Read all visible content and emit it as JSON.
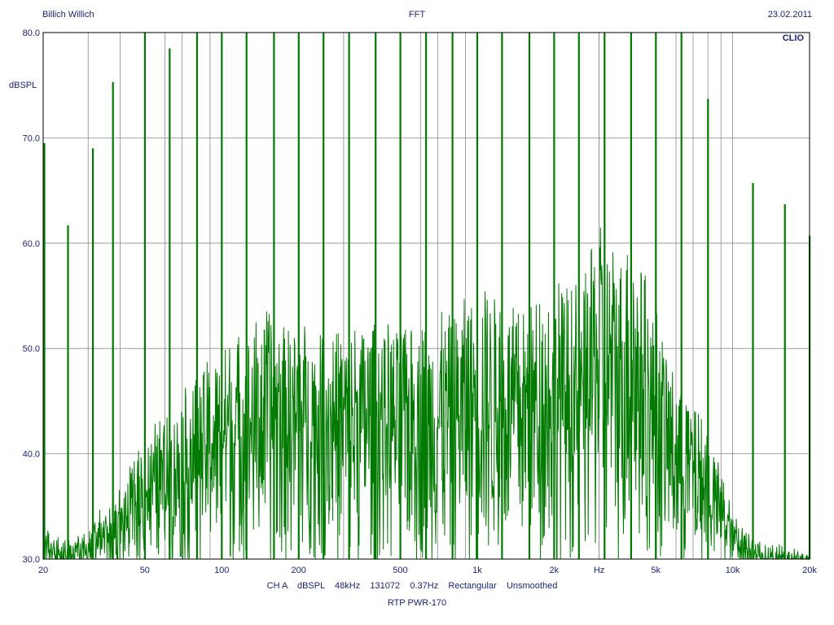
{
  "header": {
    "left": "Billich Willich",
    "center": "FFT",
    "right": "23.02.2011",
    "brand": "CLIO"
  },
  "footer": {
    "settings": "CH A    dBSPL    48kHz    131072    0.37Hz    Rectangular    Unsmoothed",
    "device": "RTP PWR-170"
  },
  "colors": {
    "trace": "#007a00",
    "grid": "#8a8a8a",
    "text": "#1a237e",
    "frame": "#000000"
  },
  "chart_data": {
    "type": "line",
    "title": "FFT",
    "ylabel": "dBSPL",
    "xlabel": "Hz",
    "xscale": "log",
    "xlim": [
      20,
      20000
    ],
    "ylim": [
      30,
      80
    ],
    "grid": true,
    "y_ticks": [
      {
        "value": 30,
        "label": "30.0"
      },
      {
        "value": 40,
        "label": "40.0"
      },
      {
        "value": 50,
        "label": "50.0"
      },
      {
        "value": 60,
        "label": "60.0"
      },
      {
        "value": 70,
        "label": "70.0"
      },
      {
        "value": 80,
        "label": "80.0"
      }
    ],
    "x_ticks": [
      {
        "value": 20,
        "label": "20"
      },
      {
        "value": 50,
        "label": "50"
      },
      {
        "value": 100,
        "label": "100"
      },
      {
        "value": 200,
        "label": "200"
      },
      {
        "value": 500,
        "label": "500"
      },
      {
        "value": 1000,
        "label": "1k"
      },
      {
        "value": 2000,
        "label": "2k"
      },
      {
        "value": 3000,
        "label": "Hz"
      },
      {
        "value": 5000,
        "label": "5k"
      },
      {
        "value": 10000,
        "label": "10k"
      },
      {
        "value": 20000,
        "label": "20k"
      }
    ],
    "minor_x_gridlines": [
      30,
      40,
      60,
      70,
      80,
      90,
      300,
      400,
      600,
      700,
      800,
      900,
      3000,
      4000,
      6000,
      7000,
      8000,
      9000
    ],
    "series": [
      {
        "spikes": [
          {
            "x": 20.2,
            "y": 69.5
          },
          {
            "x": 25,
            "y": 61.7
          },
          {
            "x": 31.3,
            "y": 69
          },
          {
            "x": 37.5,
            "y": 75.3
          },
          {
            "x": 50,
            "y": 80
          },
          {
            "x": 62.5,
            "y": 78.5
          },
          {
            "x": 80,
            "y": 80
          },
          {
            "x": 100,
            "y": 80
          },
          {
            "x": 125,
            "y": 80
          },
          {
            "x": 160,
            "y": 80
          },
          {
            "x": 200,
            "y": 80
          },
          {
            "x": 250,
            "y": 80
          },
          {
            "x": 315,
            "y": 80
          },
          {
            "x": 400,
            "y": 80
          },
          {
            "x": 500,
            "y": 80
          },
          {
            "x": 630,
            "y": 80
          },
          {
            "x": 800,
            "y": 80
          },
          {
            "x": 1000,
            "y": 80
          },
          {
            "x": 1250,
            "y": 80
          },
          {
            "x": 1600,
            "y": 80
          },
          {
            "x": 2000,
            "y": 80
          },
          {
            "x": 2500,
            "y": 80
          },
          {
            "x": 3150,
            "y": 80
          },
          {
            "x": 4000,
            "y": 80
          },
          {
            "x": 5000,
            "y": 80
          },
          {
            "x": 6300,
            "y": 80
          },
          {
            "x": 8000,
            "y": 73.7
          },
          {
            "x": 12000,
            "y": 65.7
          },
          {
            "x": 16000,
            "y": 63.7
          },
          {
            "x": 20000,
            "y": 60.7
          }
        ],
        "noise_envelope": [
          {
            "x": 28,
            "y": 33
          },
          {
            "x": 40,
            "y": 37
          },
          {
            "x": 50,
            "y": 42
          },
          {
            "x": 63,
            "y": 45
          },
          {
            "x": 80,
            "y": 48
          },
          {
            "x": 100,
            "y": 51
          },
          {
            "x": 150,
            "y": 54
          },
          {
            "x": 200,
            "y": 53
          },
          {
            "x": 300,
            "y": 53
          },
          {
            "x": 500,
            "y": 53
          },
          {
            "x": 800,
            "y": 54
          },
          {
            "x": 1000,
            "y": 57
          },
          {
            "x": 1500,
            "y": 54
          },
          {
            "x": 2000,
            "y": 57.5
          },
          {
            "x": 2500,
            "y": 56
          },
          {
            "x": 3000,
            "y": 63
          },
          {
            "x": 3500,
            "y": 60
          },
          {
            "x": 4000,
            "y": 62
          },
          {
            "x": 5000,
            "y": 54
          },
          {
            "x": 6000,
            "y": 48
          },
          {
            "x": 8000,
            "y": 43
          },
          {
            "x": 10000,
            "y": 35
          },
          {
            "x": 13000,
            "y": 32
          },
          {
            "x": 20000,
            "y": 31
          }
        ]
      }
    ]
  }
}
